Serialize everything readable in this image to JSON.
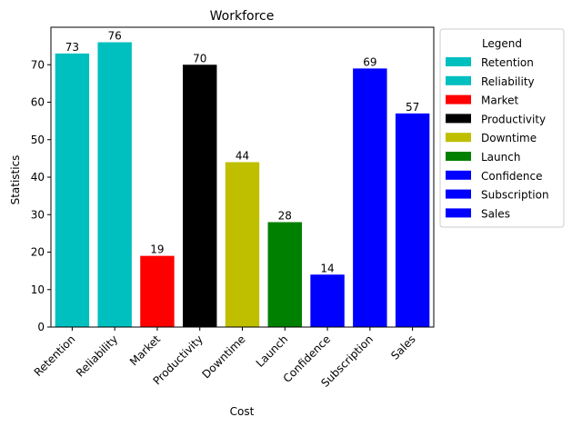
{
  "chart_data": {
    "type": "bar",
    "title": "Workforce",
    "xlabel": "Cost",
    "ylabel": "Statistics",
    "categories": [
      "Retention",
      "Reliability",
      "Market",
      "Productivity",
      "Downtime",
      "Launch",
      "Confidence",
      "Subscription",
      "Sales"
    ],
    "values": [
      73,
      76,
      19,
      70,
      44,
      28,
      14,
      69,
      57
    ],
    "colors": [
      "#00bfbf",
      "#00bfbf",
      "#ff0000",
      "#000000",
      "#bfbf00",
      "#008000",
      "#0000ff",
      "#0000ff",
      "#0000ff"
    ],
    "ylim": [
      0,
      80
    ],
    "yticks": [
      0,
      10,
      20,
      30,
      40,
      50,
      60,
      70
    ],
    "grid": false,
    "legend": {
      "title": "Legend",
      "placement": "outside-right",
      "entries": [
        "Retention",
        "Reliability",
        "Market",
        "Productivity",
        "Downtime",
        "Launch",
        "Confidence",
        "Subscription",
        "Sales"
      ]
    },
    "data_labels": true
  }
}
